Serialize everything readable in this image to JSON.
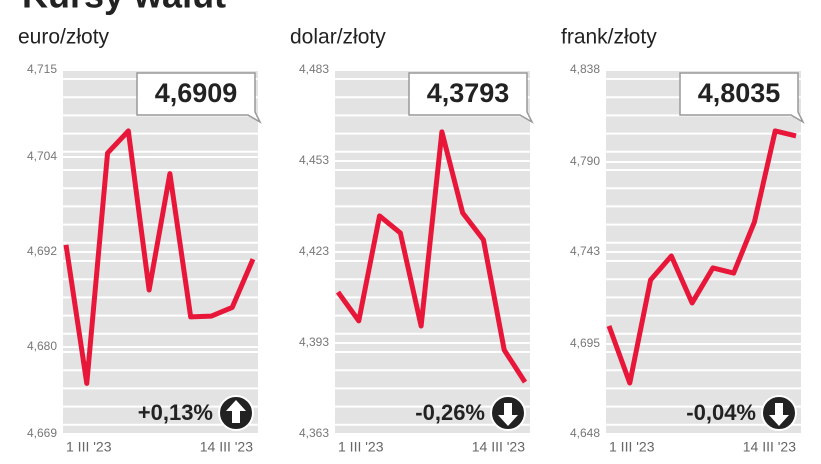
{
  "title": "Kursy walut",
  "chart_data": [
    {
      "type": "line",
      "subtitle": "euro/złoty",
      "categories": [
        "1 III '23",
        null,
        null,
        null,
        null,
        null,
        null,
        null,
        null,
        "14 III '23"
      ],
      "series": [
        {
          "color": "#e8173a",
          "values": [
            4.6929,
            4.6754,
            4.7045,
            4.7073,
            4.6872,
            4.7019,
            4.6838,
            4.6839,
            4.685,
            4.6911
          ]
        }
      ],
      "ylim": [
        4.669,
        4.715
      ],
      "yticks": [
        {
          "value": 4.669,
          "label": "4,669"
        },
        {
          "value": 4.68,
          "label": "4,680"
        },
        {
          "value": 4.692,
          "label": "4,692"
        },
        {
          "value": 4.704,
          "label": "4,704"
        },
        {
          "value": 4.715,
          "label": "4,715"
        }
      ],
      "current": {
        "value": 4.6909,
        "label": "4,6909"
      },
      "change": {
        "value": 0.13,
        "label": "+0,13%"
      }
    },
    {
      "type": "line",
      "subtitle": "dolar/złoty",
      "categories": [
        "1 III '23",
        null,
        null,
        null,
        null,
        null,
        null,
        null,
        null,
        "14 III '23"
      ],
      "series": [
        {
          "color": "#e8173a",
          "values": [
            4.4098,
            4.4003,
            4.4349,
            4.4293,
            4.3986,
            4.4626,
            4.4359,
            4.427,
            4.3907,
            4.3801
          ]
        }
      ],
      "ylim": [
        4.363,
        4.483
      ],
      "yticks": [
        {
          "value": 4.363,
          "label": "4,363"
        },
        {
          "value": 4.393,
          "label": "4,393"
        },
        {
          "value": 4.423,
          "label": "4,423"
        },
        {
          "value": 4.453,
          "label": "4,453"
        },
        {
          "value": 4.483,
          "label": "4,483"
        }
      ],
      "current": {
        "value": 4.3793,
        "label": "4,3793"
      },
      "change": {
        "value": -0.26,
        "label": "-0,26%"
      }
    },
    {
      "type": "line",
      "subtitle": "frank/złoty",
      "categories": [
        "1 III '23",
        null,
        null,
        null,
        null,
        null,
        null,
        null,
        null,
        "14 III '23"
      ],
      "series": [
        {
          "color": "#e8173a",
          "values": [
            4.7044,
            4.6746,
            4.7284,
            4.7409,
            4.7164,
            4.7347,
            4.732,
            4.7587,
            4.8062,
            4.8036
          ]
        }
      ],
      "ylim": [
        4.648,
        4.838
      ],
      "yticks": [
        {
          "value": 4.648,
          "label": "4,648"
        },
        {
          "value": 4.695,
          "label": "4,695"
        },
        {
          "value": 4.743,
          "label": "4,743"
        },
        {
          "value": 4.79,
          "label": "4,790"
        },
        {
          "value": 4.838,
          "label": "4,838"
        }
      ],
      "current": {
        "value": 4.8035,
        "label": "4,8035"
      },
      "change": {
        "value": -0.04,
        "label": "-0,04%"
      }
    }
  ]
}
